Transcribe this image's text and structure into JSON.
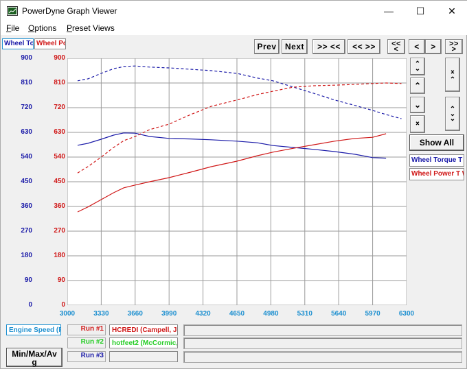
{
  "window": {
    "title": "PowerDyne Graph Viewer",
    "minimize_glyph": "—",
    "maximize_glyph": "☐",
    "close_glyph": "✕"
  },
  "menu": {
    "file_u": "F",
    "file_rest": "ile",
    "options_u": "O",
    "options_rest": "ptions",
    "preset_u": "P",
    "preset_rest": "reset Views"
  },
  "tabs": {
    "torque": "Wheel To",
    "power": "Wheel Po"
  },
  "nav": {
    "prev": "Prev",
    "next": "Next",
    "zoom_in": ">> <<",
    "zoom_out": "<< >>",
    "left": "<",
    "right": ">",
    "double_left_top": "<<",
    "double_left_bot": "<",
    "double_right_top": ">>",
    "double_right_bot": ">"
  },
  "side": {
    "show_all": "Show All",
    "legend_torque": "Wheel Torque T W",
    "legend_power": "Wheel Power T W"
  },
  "bottom": {
    "x_channel": "Engine Speed (R",
    "run1_label": "Run #1",
    "run1_name": "HCREDI (Campell, Ja",
    "run2_label": "Run #2",
    "run2_name": "hotfeet2 (McCormic,",
    "run3_label": "Run #3",
    "minmax_line1": "Min/Max/Av",
    "minmax_line2": "g"
  },
  "colors": {
    "torque": "#1a1aa8",
    "power": "#d01818",
    "axis_blue": "#1e90d0",
    "run2_green": "#22cc22"
  },
  "chart_data": {
    "type": "line",
    "x_ticks": [
      3000,
      3330,
      3660,
      3990,
      4320,
      4650,
      4980,
      5310,
      5640,
      5970,
      6300
    ],
    "y_ticks_torque": [
      900,
      810,
      720,
      630,
      540,
      450,
      360,
      270,
      180,
      90,
      0
    ],
    "y_ticks_power": [
      900,
      810,
      720,
      630,
      540,
      450,
      360,
      270,
      180,
      90,
      0
    ],
    "xlim": [
      3000,
      6300
    ],
    "ylim": [
      0,
      900
    ],
    "grid": true,
    "series": [
      {
        "name": "Wheel Torque T W",
        "run": "Run #1",
        "style": "solid",
        "color": "#1a1aa8",
        "x": [
          3100,
          3200,
          3330,
          3450,
          3550,
          3660,
          3800,
          3990,
          4200,
          4400,
          4650,
          4850,
          5000,
          5200,
          5400,
          5600,
          5800,
          5970,
          6100
        ],
        "y": [
          583,
          590,
          605,
          620,
          628,
          627,
          615,
          608,
          606,
          603,
          598,
          592,
          582,
          575,
          568,
          560,
          550,
          538,
          536
        ]
      },
      {
        "name": "Wheel Power T W",
        "run": "Run #1",
        "style": "solid",
        "color": "#d01818",
        "x": [
          3100,
          3200,
          3330,
          3450,
          3550,
          3660,
          3800,
          3990,
          4200,
          4400,
          4650,
          4850,
          5000,
          5200,
          5400,
          5600,
          5800,
          5970,
          6100
        ],
        "y": [
          340,
          358,
          385,
          410,
          428,
          438,
          450,
          465,
          485,
          505,
          525,
          545,
          558,
          572,
          585,
          598,
          608,
          612,
          625
        ]
      },
      {
        "name": "Wheel Torque T W",
        "run": "Run #2",
        "style": "dashed",
        "color": "#1a1aa8",
        "x": [
          3100,
          3200,
          3330,
          3450,
          3550,
          3660,
          3800,
          3990,
          4200,
          4400,
          4650,
          4850,
          5000,
          5200,
          5400,
          5600,
          5800,
          5970,
          6100,
          6250
        ],
        "y": [
          818,
          825,
          845,
          862,
          870,
          872,
          868,
          865,
          860,
          855,
          845,
          828,
          818,
          795,
          772,
          748,
          728,
          710,
          695,
          680
        ]
      },
      {
        "name": "Wheel Power T W",
        "run": "Run #2",
        "style": "dashed",
        "color": "#d01818",
        "x": [
          3100,
          3200,
          3330,
          3450,
          3550,
          3660,
          3800,
          3990,
          4200,
          4400,
          4650,
          4850,
          5000,
          5200,
          5400,
          5600,
          5800,
          5970,
          6100,
          6250
        ],
        "y": [
          482,
          505,
          540,
          575,
          600,
          615,
          640,
          660,
          695,
          725,
          748,
          768,
          780,
          795,
          800,
          802,
          805,
          808,
          810,
          808
        ]
      }
    ]
  }
}
